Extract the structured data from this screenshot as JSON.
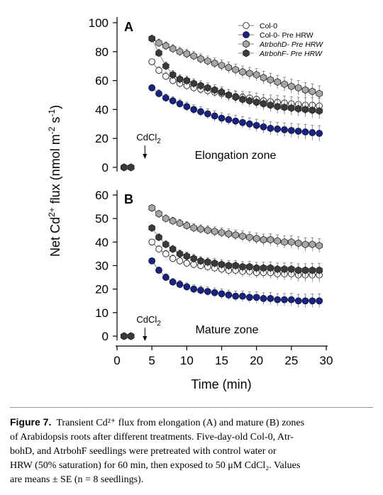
{
  "chart_data": [
    {
      "type": "scatter",
      "panel_label": "A",
      "zone_label": "Elongation zone",
      "annotation": {
        "text": "CdCl",
        "subscript": "2",
        "x": 4
      },
      "ylim": [
        0,
        100
      ],
      "yticks": [
        "0",
        "20",
        "40",
        "60",
        "80",
        "100"
      ],
      "legend": {
        "position": "top-right"
      },
      "series": [
        {
          "name": "Col-0",
          "marker": "open",
          "color": "#ffffff",
          "points": [
            [
              1,
              0
            ],
            [
              2,
              0
            ],
            [
              5,
              73
            ],
            [
              6,
              67
            ],
            [
              7,
              63
            ],
            [
              8,
              60
            ],
            [
              9,
              58
            ],
            [
              10,
              56.5
            ],
            [
              11,
              55
            ],
            [
              12,
              54
            ],
            [
              13,
              53
            ],
            [
              14,
              52
            ],
            [
              15,
              51
            ],
            [
              16,
              50
            ],
            [
              17,
              49
            ],
            [
              18,
              48.5
            ],
            [
              19,
              48
            ],
            [
              20,
              47
            ],
            [
              21,
              46
            ],
            [
              22,
              45.5
            ],
            [
              23,
              45
            ],
            [
              24,
              44.5
            ],
            [
              25,
              44
            ],
            [
              26,
              43.5
            ],
            [
              27,
              43
            ],
            [
              28,
              43
            ],
            [
              29,
              42.5
            ]
          ]
        },
        {
          "name": "Col-0- Pre HRW",
          "marker": "filled",
          "color": "#1a237e",
          "points": [
            [
              1,
              0
            ],
            [
              2,
              0
            ],
            [
              5,
              55
            ],
            [
              6,
              51
            ],
            [
              7,
              48
            ],
            [
              8,
              46
            ],
            [
              9,
              44
            ],
            [
              10,
              42
            ],
            [
              11,
              40
            ],
            [
              12,
              38.5
            ],
            [
              13,
              37
            ],
            [
              14,
              35.5
            ],
            [
              15,
              34
            ],
            [
              16,
              33
            ],
            [
              17,
              32
            ],
            [
              18,
              31
            ],
            [
              19,
              30
            ],
            [
              20,
              29
            ],
            [
              21,
              28
            ],
            [
              22,
              27
            ],
            [
              23,
              26.5
            ],
            [
              24,
              26
            ],
            [
              25,
              25.5
            ],
            [
              26,
              25
            ],
            [
              27,
              24.5
            ],
            [
              28,
              24
            ],
            [
              29,
              23.5
            ]
          ]
        },
        {
          "name": "AtrbohD- Pre HRW",
          "marker": "hexagon",
          "color": "#a6a6a6",
          "points": [
            [
              1,
              0
            ],
            [
              2,
              0
            ],
            [
              5,
              89
            ],
            [
              6,
              86
            ],
            [
              7,
              84
            ],
            [
              8,
              82
            ],
            [
              9,
              80
            ],
            [
              10,
              78.5
            ],
            [
              11,
              77
            ],
            [
              12,
              75
            ],
            [
              13,
              73.5
            ],
            [
              14,
              72
            ],
            [
              15,
              70.5
            ],
            [
              16,
              69
            ],
            [
              17,
              67.5
            ],
            [
              18,
              66
            ],
            [
              19,
              65
            ],
            [
              20,
              64
            ],
            [
              21,
              62
            ],
            [
              22,
              60.5
            ],
            [
              23,
              59
            ],
            [
              24,
              57.5
            ],
            [
              25,
              56
            ],
            [
              26,
              55
            ],
            [
              27,
              53.5
            ],
            [
              28,
              52.5
            ],
            [
              29,
              51
            ]
          ]
        },
        {
          "name": "AtrbohF- Pre HRW",
          "marker": "hexagon",
          "color": "#3a3a3a",
          "points": [
            [
              1,
              0
            ],
            [
              2,
              0
            ],
            [
              5,
              89
            ],
            [
              6,
              79
            ],
            [
              7,
              70
            ],
            [
              8,
              64
            ],
            [
              9,
              61
            ],
            [
              10,
              60
            ],
            [
              11,
              58
            ],
            [
              12,
              56.5
            ],
            [
              13,
              55
            ],
            [
              14,
              53.5
            ],
            [
              15,
              52
            ],
            [
              16,
              50
            ],
            [
              17,
              48.5
            ],
            [
              18,
              47
            ],
            [
              19,
              46
            ],
            [
              20,
              45
            ],
            [
              21,
              44
            ],
            [
              22,
              43
            ],
            [
              23,
              42
            ],
            [
              24,
              41.5
            ],
            [
              25,
              41
            ],
            [
              26,
              40.5
            ],
            [
              27,
              40
            ],
            [
              28,
              39.5
            ],
            [
              29,
              39
            ]
          ]
        }
      ]
    },
    {
      "type": "scatter",
      "panel_label": "B",
      "zone_label": "Mature zone",
      "annotation": {
        "text": "CdCl",
        "subscript": "2",
        "x": 4
      },
      "ylim": [
        0,
        60
      ],
      "yticks": [
        "0",
        "10",
        "20",
        "30",
        "40",
        "50",
        "60"
      ],
      "series": [
        {
          "name": "Col-0",
          "marker": "open",
          "color": "#ffffff",
          "points": [
            [
              1,
              0
            ],
            [
              2,
              0
            ],
            [
              5,
              40
            ],
            [
              6,
              37
            ],
            [
              7,
              35
            ],
            [
              8,
              33
            ],
            [
              9,
              32
            ],
            [
              10,
              31
            ],
            [
              11,
              30.5
            ],
            [
              12,
              30
            ],
            [
              13,
              29.5
            ],
            [
              14,
              29
            ],
            [
              15,
              28.5
            ],
            [
              16,
              28
            ],
            [
              17,
              28
            ],
            [
              18,
              27.5
            ],
            [
              19,
              27.5
            ],
            [
              20,
              27
            ],
            [
              21,
              27
            ],
            [
              22,
              27
            ],
            [
              23,
              26.5
            ],
            [
              24,
              26.5
            ],
            [
              25,
              26.5
            ],
            [
              26,
              26
            ],
            [
              27,
              26
            ],
            [
              28,
              26
            ],
            [
              29,
              26
            ]
          ]
        },
        {
          "name": "Col-0- Pre HRW",
          "marker": "filled",
          "color": "#1a237e",
          "points": [
            [
              1,
              0
            ],
            [
              2,
              0
            ],
            [
              5,
              32
            ],
            [
              6,
              28
            ],
            [
              7,
              25
            ],
            [
              8,
              23
            ],
            [
              9,
              22
            ],
            [
              10,
              21
            ],
            [
              11,
              20
            ],
            [
              12,
              19.5
            ],
            [
              13,
              19
            ],
            [
              14,
              18.5
            ],
            [
              15,
              18
            ],
            [
              16,
              17.5
            ],
            [
              17,
              17
            ],
            [
              18,
              17
            ],
            [
              19,
              16.5
            ],
            [
              20,
              16.5
            ],
            [
              21,
              16
            ],
            [
              22,
              16
            ],
            [
              23,
              15.5
            ],
            [
              24,
              15.5
            ],
            [
              25,
              15.5
            ],
            [
              26,
              15
            ],
            [
              27,
              15
            ],
            [
              28,
              15
            ],
            [
              29,
              15
            ]
          ]
        },
        {
          "name": "AtrbohD- Pre HRW",
          "marker": "hexagon",
          "color": "#a6a6a6",
          "points": [
            [
              1,
              0
            ],
            [
              2,
              0
            ],
            [
              5,
              54.5
            ],
            [
              6,
              52
            ],
            [
              7,
              50
            ],
            [
              8,
              49
            ],
            [
              9,
              48
            ],
            [
              10,
              47
            ],
            [
              11,
              46
            ],
            [
              12,
              45.5
            ],
            [
              13,
              45
            ],
            [
              14,
              44.5
            ],
            [
              15,
              44
            ],
            [
              16,
              43.5
            ],
            [
              17,
              43
            ],
            [
              18,
              42.5
            ],
            [
              19,
              42
            ],
            [
              20,
              41.5
            ],
            [
              21,
              41
            ],
            [
              22,
              41
            ],
            [
              23,
              40.5
            ],
            [
              24,
              40
            ],
            [
              25,
              40
            ],
            [
              26,
              39.5
            ],
            [
              27,
              39
            ],
            [
              28,
              39
            ],
            [
              29,
              38.5
            ]
          ]
        },
        {
          "name": "AtrbohF- Pre HRW",
          "marker": "hexagon",
          "color": "#3a3a3a",
          "points": [
            [
              1,
              0
            ],
            [
              2,
              0
            ],
            [
              5,
              46
            ],
            [
              6,
              42
            ],
            [
              7,
              39
            ],
            [
              8,
              37
            ],
            [
              9,
              35
            ],
            [
              10,
              34
            ],
            [
              11,
              33
            ],
            [
              12,
              32
            ],
            [
              13,
              31.5
            ],
            [
              14,
              31
            ],
            [
              15,
              30.5
            ],
            [
              16,
              30
            ],
            [
              17,
              30
            ],
            [
              18,
              29.5
            ],
            [
              19,
              29.5
            ],
            [
              20,
              29
            ],
            [
              21,
              29
            ],
            [
              22,
              29
            ],
            [
              23,
              28.5
            ],
            [
              24,
              28.5
            ],
            [
              25,
              28.5
            ],
            [
              26,
              28
            ],
            [
              27,
              28
            ],
            [
              28,
              28
            ],
            [
              29,
              28
            ]
          ]
        }
      ]
    }
  ],
  "axes": {
    "xlabel": "Time (min)",
    "ylabel_parts": [
      "Net Cd",
      "2+",
      " flux (nmol m",
      "-2",
      " s",
      "-1",
      ")"
    ],
    "xlim": [
      0,
      30
    ],
    "xticks": [
      "0",
      "5",
      "10",
      "15",
      "20",
      "25",
      "30"
    ]
  },
  "caption": {
    "fig_label": "Figure 7.",
    "lines": [
      "Transient Cd²⁺ flux from elongation (A) and mature (B) zones",
      "of Arabidopsis roots after different treatments. Five-day-old Col-0, Atr-",
      "bohD, and AtrbohF seedlings were pretreated with control water or",
      "HRW (50% saturation) for 60 min, then exposed to 50 μM CdCl₂. Values",
      "are means ± SE (n = 8 seedlings)."
    ]
  }
}
